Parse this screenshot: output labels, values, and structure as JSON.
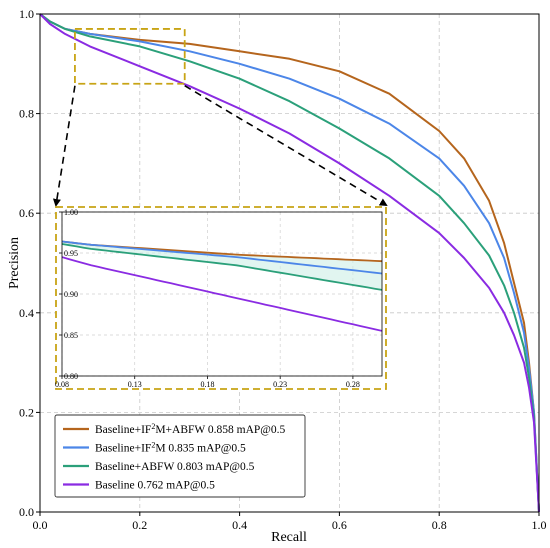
{
  "chart_data": {
    "type": "line",
    "xlabel": "Recall",
    "ylabel": "Precision",
    "xlim": [
      0,
      1
    ],
    "ylim": [
      0,
      1
    ],
    "x_ticks": [
      "0.0",
      "0.2",
      "0.4",
      "0.6",
      "0.8",
      "1.0"
    ],
    "y_ticks": [
      "0.0",
      "0.2",
      "0.4",
      "0.6",
      "0.8",
      "1.0"
    ],
    "grid": true,
    "legend_position": "lower-left",
    "series": [
      {
        "name_parts": [
          "Baseline+IF",
          "2",
          "M+ABFW 0.858 mAP@0.5"
        ],
        "color": "#b5651d",
        "x": [
          0,
          0.02,
          0.05,
          0.1,
          0.2,
          0.3,
          0.4,
          0.5,
          0.6,
          0.7,
          0.8,
          0.85,
          0.9,
          0.93,
          0.95,
          0.97,
          0.98,
          0.99,
          1.0
        ],
        "y": [
          1.0,
          0.985,
          0.97,
          0.96,
          0.948,
          0.94,
          0.925,
          0.91,
          0.885,
          0.84,
          0.765,
          0.71,
          0.625,
          0.54,
          0.46,
          0.38,
          0.3,
          0.2,
          0.0
        ]
      },
      {
        "name_parts": [
          "Baseline+IF",
          "2",
          "M 0.835 mAP@0.5"
        ],
        "color": "#4c86e8",
        "x": [
          0,
          0.02,
          0.05,
          0.1,
          0.2,
          0.3,
          0.4,
          0.5,
          0.6,
          0.7,
          0.8,
          0.85,
          0.9,
          0.93,
          0.95,
          0.97,
          0.98,
          0.99,
          1.0
        ],
        "y": [
          1.0,
          0.985,
          0.97,
          0.96,
          0.945,
          0.925,
          0.9,
          0.87,
          0.83,
          0.78,
          0.71,
          0.655,
          0.58,
          0.51,
          0.44,
          0.36,
          0.29,
          0.2,
          0.0
        ]
      },
      {
        "name_parts": [
          "Baseline+ABFW 0.803 mAP@0.5"
        ],
        "color": "#2ba07a",
        "x": [
          0,
          0.02,
          0.05,
          0.1,
          0.2,
          0.3,
          0.4,
          0.5,
          0.6,
          0.7,
          0.8,
          0.85,
          0.9,
          0.93,
          0.95,
          0.97,
          0.98,
          0.99,
          1.0
        ],
        "y": [
          1.0,
          0.985,
          0.97,
          0.955,
          0.935,
          0.905,
          0.87,
          0.825,
          0.77,
          0.71,
          0.635,
          0.58,
          0.515,
          0.455,
          0.4,
          0.33,
          0.27,
          0.19,
          0.0
        ]
      },
      {
        "name_parts": [
          "Baseline 0.762 mAP@0.5"
        ],
        "color": "#8a2be2",
        "x": [
          0,
          0.02,
          0.05,
          0.1,
          0.2,
          0.3,
          0.4,
          0.5,
          0.6,
          0.7,
          0.8,
          0.85,
          0.9,
          0.93,
          0.95,
          0.97,
          0.98,
          0.99,
          1.0
        ],
        "y": [
          1.0,
          0.98,
          0.96,
          0.935,
          0.895,
          0.855,
          0.81,
          0.76,
          0.7,
          0.635,
          0.56,
          0.51,
          0.45,
          0.4,
          0.355,
          0.3,
          0.25,
          0.18,
          0.0
        ]
      }
    ],
    "zoom_inset": {
      "region_x": [
        0.07,
        0.29
      ],
      "region_y": [
        0.86,
        0.97
      ],
      "xlim": [
        0.08,
        0.3
      ],
      "ylim": [
        0.8,
        1.0
      ],
      "x_ticks": [
        "0.08",
        "0.13",
        "0.18",
        "0.23",
        "0.28"
      ],
      "y_ticks": [
        "0.80",
        "0.85",
        "0.90",
        "0.95",
        "1.00"
      ],
      "highlight_color": "#c8a415"
    }
  }
}
